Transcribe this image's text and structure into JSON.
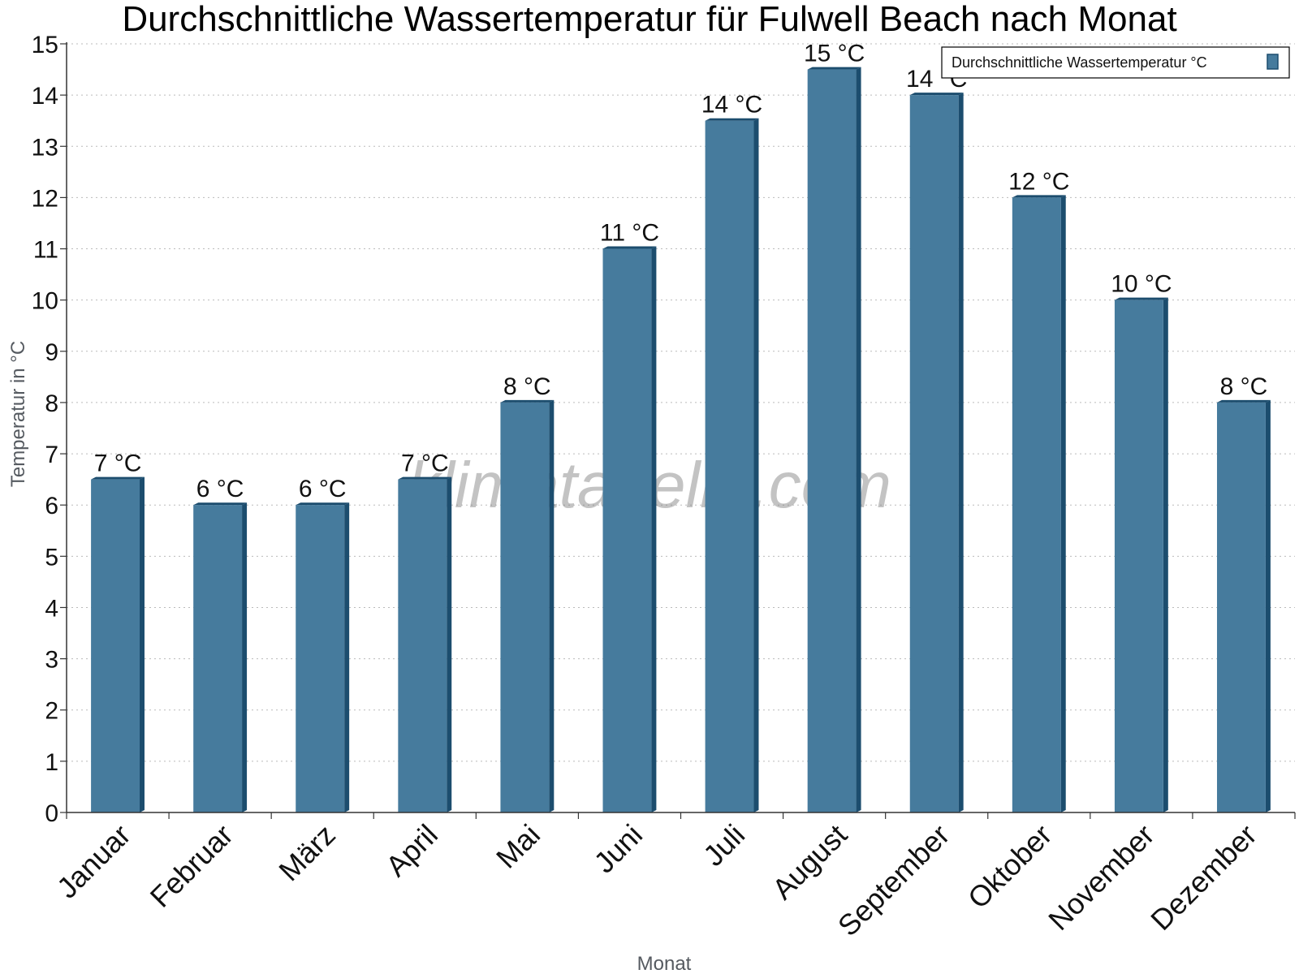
{
  "chart_data": {
    "type": "bar",
    "title": "Durchschnittliche Wassertemperatur für Fulwell Beach nach Monat",
    "xlabel": "Monat",
    "ylabel": "Temperatur in °C",
    "categories": [
      "Januar",
      "Februar",
      "März",
      "April",
      "Mai",
      "Juni",
      "Juli",
      "August",
      "September",
      "Oktober",
      "November",
      "Dezember"
    ],
    "series": [
      {
        "name": "Durchschnittliche Wassertemperatur °C",
        "values": [
          6.5,
          6.0,
          6.0,
          6.5,
          8.0,
          11.0,
          13.5,
          14.5,
          14.0,
          12.0,
          10.0,
          8.0
        ],
        "labels": [
          "7 °C",
          "6 °C",
          "6 °C",
          "7 °C",
          "8 °C",
          "11 °C",
          "14 °C",
          "15 °C",
          "14 °C",
          "12 °C",
          "10 °C",
          "8 °C"
        ],
        "color": "#467b9d",
        "edge_color": "#1c4d6e"
      }
    ],
    "ylim": [
      0,
      15
    ],
    "yticks": [
      0,
      1,
      2,
      3,
      4,
      5,
      6,
      7,
      8,
      9,
      10,
      11,
      12,
      13,
      14,
      15
    ],
    "grid": true,
    "legend_position": "top-right"
  },
  "watermark": "klimatabelle.com"
}
